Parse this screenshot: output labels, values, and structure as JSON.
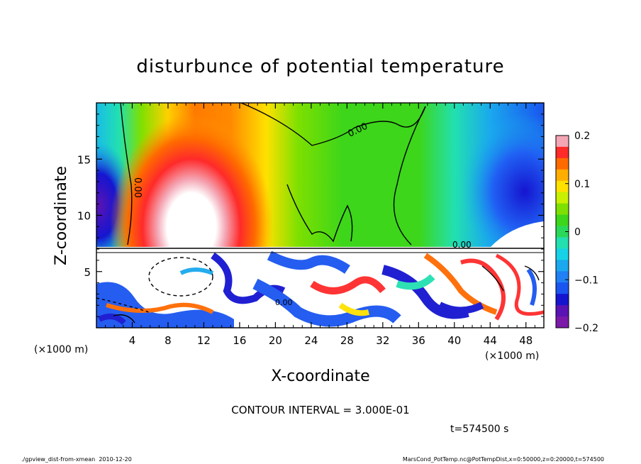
{
  "chart_data": {
    "type": "heatmap",
    "title": "disturbunce of potential temperature",
    "xlabel": "X-coordinate",
    "ylabel": "Z-coordinate",
    "x_unit": "(×1000 m)",
    "z_unit": "(×1000 m)",
    "xlim": [
      0,
      50
    ],
    "ylim": [
      0,
      20
    ],
    "x_ticks": [
      4,
      8,
      12,
      16,
      20,
      24,
      28,
      32,
      36,
      40,
      44,
      48
    ],
    "y_ticks": [
      5,
      10,
      15
    ],
    "colorbar": {
      "range": [
        -0.2,
        0.2
      ],
      "ticks": [
        0.2,
        0.1,
        0,
        -0.1,
        -0.2
      ],
      "tick_labels": [
        "0.2",
        "0.1",
        "0",
        "−0.1",
        "−0.2"
      ],
      "colors": [
        "#f4a6b4",
        "#ff2a2a",
        "#ff6a00",
        "#ffae00",
        "#ffe100",
        "#c8f000",
        "#7ee000",
        "#3dd61a",
        "#2ad95a",
        "#22e0b0",
        "#17d2e6",
        "#1aa8ee",
        "#2080f4",
        "#1a55f0",
        "#1515d0",
        "#5a13b4",
        "#7b1aa8"
      ]
    },
    "contour_labels": [
      "0.00",
      "0.00",
      "0.00",
      "0.00"
    ],
    "contour_interval": "CONTOUR INTERVAL = 3.000E-01",
    "time_label": "t=574500 s",
    "footer_left": "./gpview_dist-from-xmean  2010-12-20",
    "footer_right": "MarsCond_PotTemp.nc@PotTempDist,x=0:50000,z=0:20000,t=574500",
    "field_features": [
      {
        "name": "warm plume",
        "x_center": 11,
        "z_center": 13,
        "value": 0.2
      },
      {
        "name": "cold region left",
        "x_center": 0.5,
        "z_center": 12,
        "value": -0.2
      },
      {
        "name": "cold region right",
        "x_center": 48,
        "z_center": 14,
        "value": -0.18
      }
    ]
  }
}
